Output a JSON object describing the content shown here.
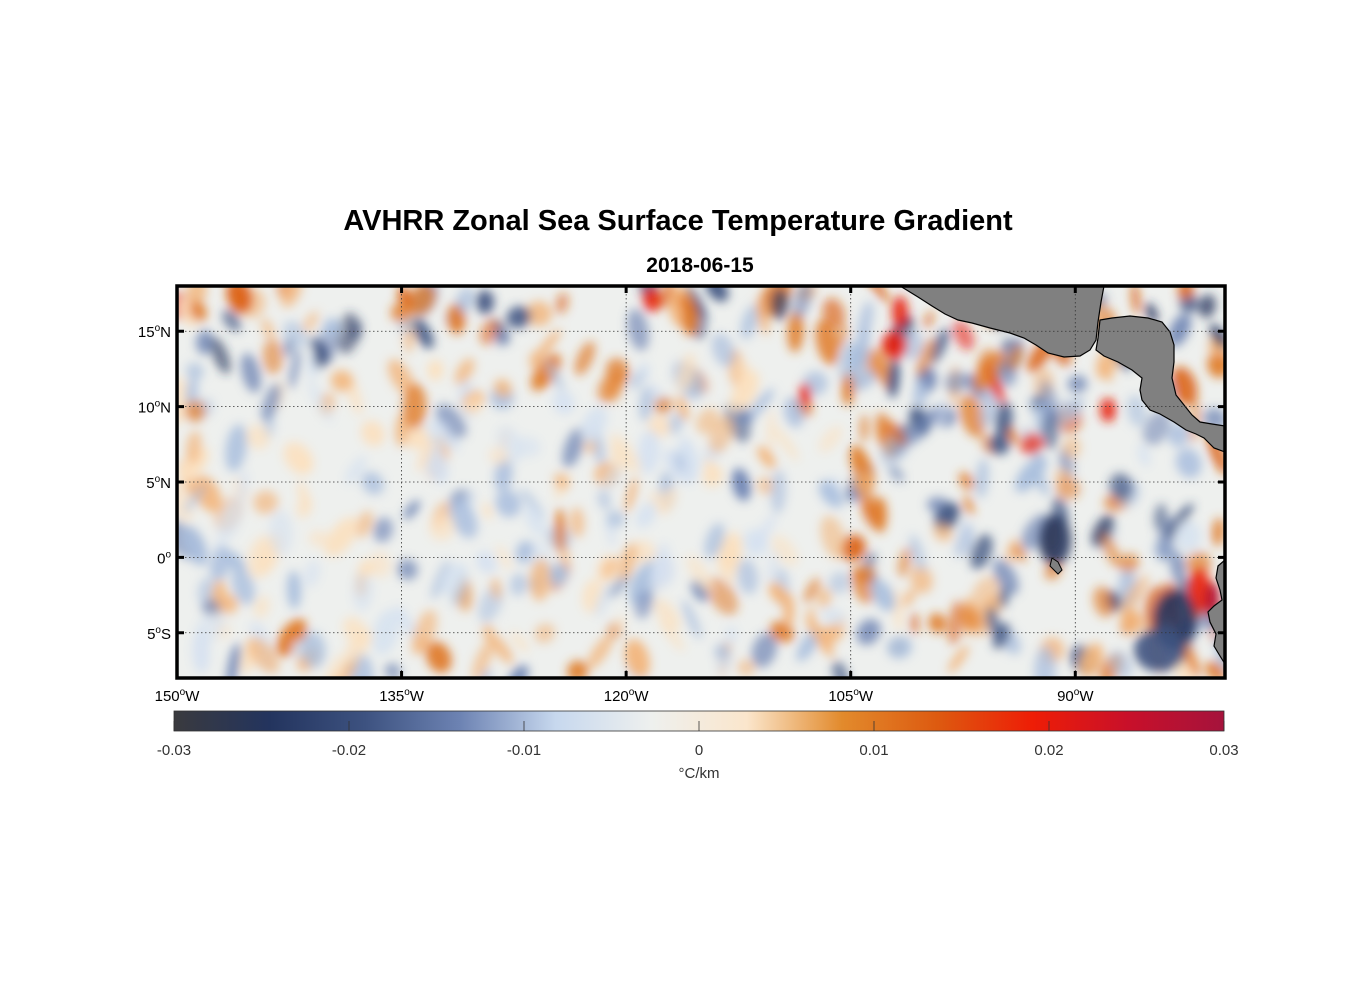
{
  "title": "AVHRR Zonal Sea Surface Temperature Gradient",
  "subtitle": "2018-06-15",
  "map": {
    "lon_range": [
      -150,
      -80
    ],
    "lat_range": [
      -8,
      18
    ],
    "grid": true,
    "lat_ticks": [
      {
        "value": 15,
        "num": "15",
        "hemi": "N"
      },
      {
        "value": 10,
        "num": "10",
        "hemi": "N"
      },
      {
        "value": 5,
        "num": "5",
        "hemi": "N"
      },
      {
        "value": 0,
        "num": "0",
        "hemi": ""
      },
      {
        "value": -5,
        "num": "5",
        "hemi": "S"
      }
    ],
    "lon_ticks": [
      {
        "value": -150,
        "num": "150",
        "hemi": "W"
      },
      {
        "value": -135,
        "num": "135",
        "hemi": "W"
      },
      {
        "value": -120,
        "num": "120",
        "hemi": "W"
      },
      {
        "value": -105,
        "num": "105",
        "hemi": "W"
      },
      {
        "value": -90,
        "num": "90",
        "hemi": "W"
      }
    ],
    "land_color": "#808080"
  },
  "colorbar": {
    "min": -0.03,
    "max": 0.03,
    "ticks": [
      "-0.03",
      "-0.02",
      "-0.01",
      "0",
      "0.01",
      "0.02",
      "0.03"
    ],
    "units": "°C/km",
    "colors": [
      "#3a3a3e",
      "#23345e",
      "#3d5280",
      "#6d83b3",
      "#c7d8ee",
      "#eef0ee",
      "#fbe6cc",
      "#e28a2c",
      "#dd5a10",
      "#ee1d06",
      "#c8102a",
      "#a5133c"
    ]
  }
}
